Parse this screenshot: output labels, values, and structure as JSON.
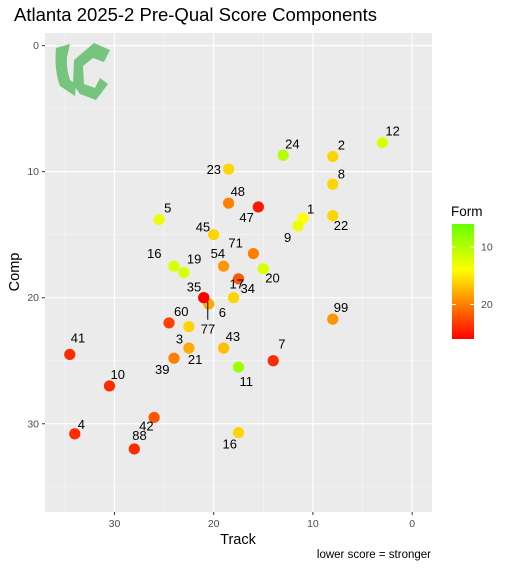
{
  "chart_data": {
    "type": "scatter",
    "title": "Atlanta 2025-2 Pre-Qual Score Components",
    "xlabel": "Track",
    "ylabel": "Comp",
    "caption": "lower score = stronger",
    "x_reversed": true,
    "y_reversed": true,
    "xlim": [
      37,
      -2
    ],
    "ylim": [
      -1,
      37
    ],
    "x_ticks": [
      30,
      20,
      10,
      0
    ],
    "y_ticks": [
      0,
      10,
      20,
      30
    ],
    "grid": true,
    "legend": {
      "title": "Form",
      "position": "right",
      "ticks": [
        10,
        20
      ],
      "range": [
        6,
        26
      ],
      "colors": [
        "#66ff00",
        "#ffff00",
        "#ff0000"
      ]
    },
    "points": [
      {
        "label": "12",
        "x": 3,
        "y": 7.7,
        "form": 12
      },
      {
        "label": "24",
        "x": 13,
        "y": 8.7,
        "form": 10
      },
      {
        "label": "2",
        "x": 8,
        "y": 8.8,
        "form": 16
      },
      {
        "label": "23",
        "x": 18.5,
        "y": 9.8,
        "form": 16
      },
      {
        "label": "8",
        "x": 8,
        "y": 11,
        "form": 16
      },
      {
        "label": "48",
        "x": 18.5,
        "y": 12.5,
        "form": 20
      },
      {
        "label": "47",
        "x": 15.5,
        "y": 12.8,
        "form": 25
      },
      {
        "label": "1",
        "x": 11,
        "y": 13.7,
        "form": 14
      },
      {
        "label": "9",
        "x": 11.5,
        "y": 14.3,
        "form": 13
      },
      {
        "label": "22",
        "x": 8,
        "y": 13.5,
        "form": 16
      },
      {
        "label": "5",
        "x": 25.5,
        "y": 13.8,
        "form": 13
      },
      {
        "label": "45",
        "x": 20,
        "y": 15,
        "form": 16
      },
      {
        "label": "71",
        "x": 16,
        "y": 16.5,
        "form": 20
      },
      {
        "label": "16",
        "x": 24,
        "y": 17.5,
        "form": 12
      },
      {
        "label": "19",
        "x": 23,
        "y": 18,
        "form": 12
      },
      {
        "label": "54",
        "x": 19,
        "y": 17.5,
        "form": 19
      },
      {
        "label": "20",
        "x": 15,
        "y": 17.7,
        "form": 12
      },
      {
        "label": "34",
        "x": 17.5,
        "y": 18.5,
        "form": 22
      },
      {
        "label": "35",
        "x": 21,
        "y": 20,
        "form": 25
      },
      {
        "label": "6",
        "x": 20.5,
        "y": 20.5,
        "form": 18
      },
      {
        "label": "77",
        "x": 21,
        "y": 20,
        "form": 26
      },
      {
        "label": "17",
        "x": 18,
        "y": 20,
        "form": 16
      },
      {
        "label": "99",
        "x": 8,
        "y": 21.7,
        "form": 19
      },
      {
        "label": "60",
        "x": 24.5,
        "y": 22,
        "form": 23
      },
      {
        "label": "3",
        "x": 22.5,
        "y": 22.3,
        "form": 16
      },
      {
        "label": "43",
        "x": 19,
        "y": 24,
        "form": 17
      },
      {
        "label": "21",
        "x": 22.5,
        "y": 24,
        "form": 18
      },
      {
        "label": "39",
        "x": 24,
        "y": 24.8,
        "form": 20
      },
      {
        "label": "7",
        "x": 14,
        "y": 25,
        "form": 24
      },
      {
        "label": "11",
        "x": 17.5,
        "y": 25.5,
        "form": 9
      },
      {
        "label": "41",
        "x": 34.5,
        "y": 24.5,
        "form": 24
      },
      {
        "label": "10",
        "x": 30.5,
        "y": 27,
        "form": 24
      },
      {
        "label": "42",
        "x": 26,
        "y": 29.5,
        "form": 22
      },
      {
        "label": "4",
        "x": 34,
        "y": 30.8,
        "form": 24
      },
      {
        "label": "88",
        "x": 28,
        "y": 32,
        "form": 24
      },
      {
        "label": "16",
        "x": 17.5,
        "y": 30.7,
        "form": 16
      }
    ]
  }
}
